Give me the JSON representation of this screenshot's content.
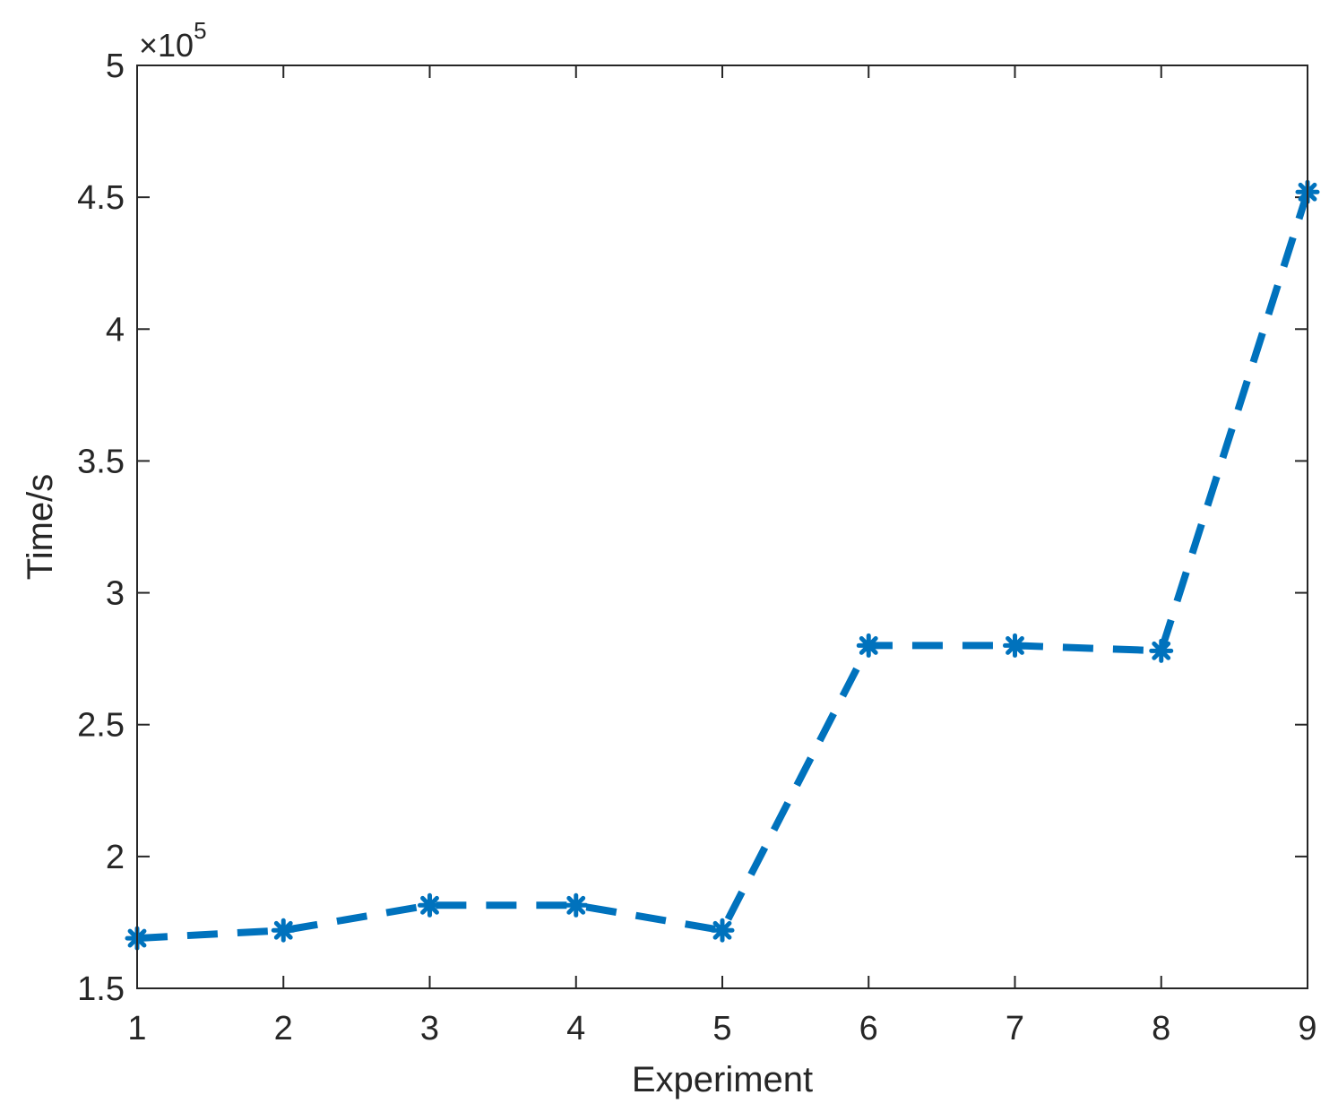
{
  "chart_data": {
    "type": "line",
    "title": "",
    "xlabel": "Experiment",
    "ylabel": "Time/s",
    "y_scale_factor_label": "×10",
    "y_scale_exponent": "5",
    "xlim": [
      1,
      9
    ],
    "ylim": [
      1.5,
      5
    ],
    "x_ticks": [
      "1",
      "2",
      "3",
      "4",
      "5",
      "6",
      "7",
      "8",
      "9"
    ],
    "y_ticks": [
      "1.5",
      "2",
      "2.5",
      "3",
      "3.5",
      "4",
      "4.5",
      "5"
    ],
    "grid": false,
    "line_style": "dashed",
    "marker": "asterisk",
    "color": "#0072BD",
    "series": [
      {
        "x": [
          1,
          2,
          3,
          4,
          5,
          6,
          7,
          8,
          9
        ],
        "values": [
          1.69,
          1.72,
          1.815,
          1.815,
          1.72,
          2.8,
          2.8,
          2.78,
          4.52
        ]
      }
    ]
  }
}
